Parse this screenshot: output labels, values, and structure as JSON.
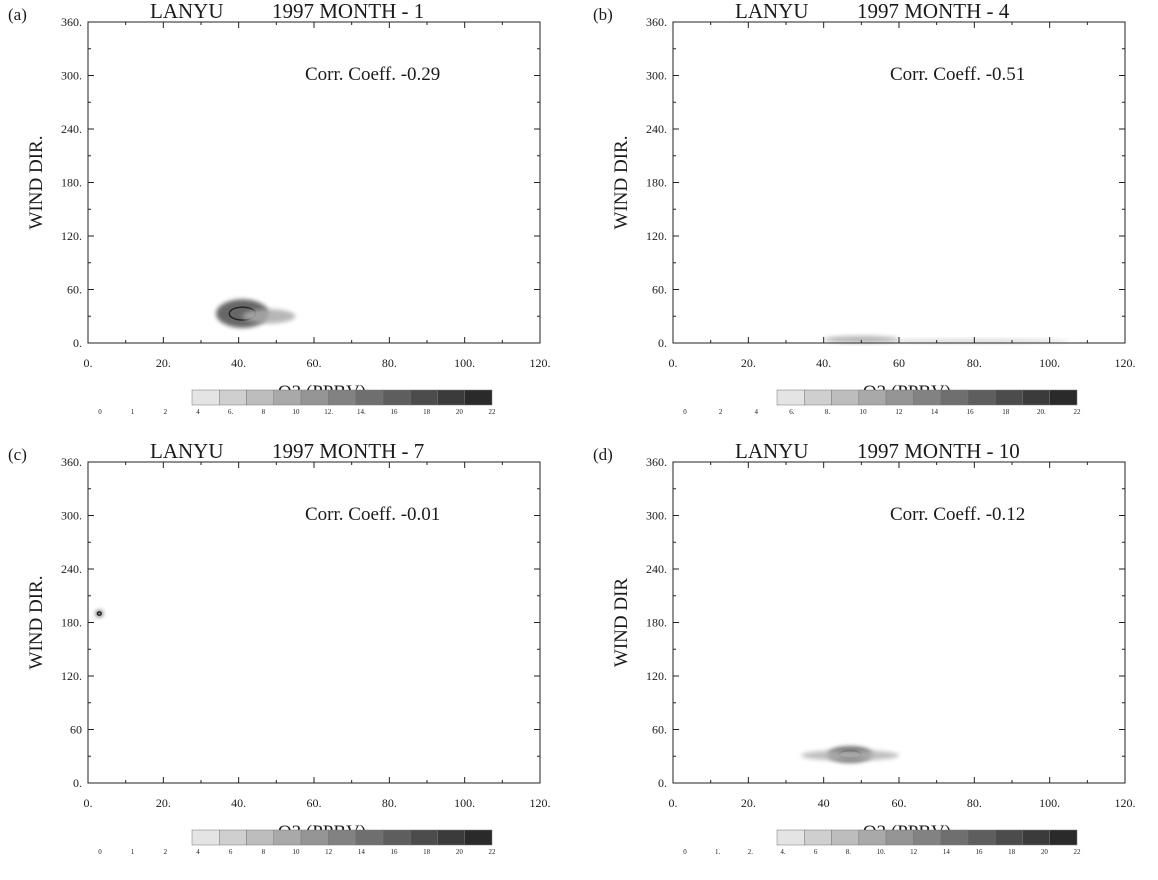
{
  "chart_data": [
    {
      "type": "heatmap",
      "panel_label": "(a)",
      "title": [
        "LANYU",
        "1997 MONTH  -  1"
      ],
      "xlabel": "O3 (PPBV)",
      "ylabel": "WIND DIR.",
      "xlim": [
        0,
        120
      ],
      "ylim": [
        0,
        360
      ],
      "xticks": [
        "0.",
        "20.",
        "40.",
        "60.",
        "80.",
        "100.",
        "120."
      ],
      "yticks": [
        "0.",
        "60.",
        "120.",
        "180.",
        "240.",
        "300.",
        "360."
      ],
      "annotation": "Corr. Coeff. -0.29",
      "colorbar": {
        "ticks": [
          "0",
          "1",
          "2",
          "4",
          "6.",
          "8",
          "10",
          "12.",
          "14.",
          "16",
          "18",
          "20",
          "22"
        ]
      },
      "density_blobs": [
        {
          "x": 41,
          "y": 33,
          "rx": 7,
          "ry": 16,
          "level": 0.85
        },
        {
          "x": 48,
          "y": 30,
          "rx": 7,
          "ry": 8,
          "level": 0.35
        }
      ]
    },
    {
      "type": "heatmap",
      "panel_label": "(b)",
      "title": [
        "LANYU",
        "1997 MONTH  -  4"
      ],
      "xlabel": "O3 (PPBV)",
      "ylabel": "WIND DIR.",
      "xlim": [
        0,
        120
      ],
      "ylim": [
        0,
        360
      ],
      "xticks": [
        "0.",
        "20.",
        "40.",
        "60",
        "80.",
        "100.",
        "120."
      ],
      "yticks": [
        "0.",
        "60.",
        "120.",
        "180.",
        "240.",
        "300.",
        "360."
      ],
      "annotation": "Corr. Coeff. -0.51",
      "colorbar": {
        "ticks": [
          "0",
          "2",
          "4",
          "6.",
          "8.",
          "10",
          "12",
          "14",
          "16",
          "18",
          "20.",
          "22"
        ]
      },
      "density_blobs": [
        {
          "x": 50,
          "y": 4,
          "rx": 10,
          "ry": 4,
          "level": 0.35
        },
        {
          "x": 80,
          "y": 2,
          "rx": 25,
          "ry": 2,
          "level": 0.15
        }
      ]
    },
    {
      "type": "heatmap",
      "panel_label": "(c)",
      "title": [
        "LANYU",
        "1997 MONTH  -  7"
      ],
      "xlabel": "O3 (PPBV)",
      "ylabel": "WIND DIR.",
      "xlim": [
        0,
        120
      ],
      "ylim": [
        0,
        360
      ],
      "xticks": [
        "0.",
        "20.",
        "40.",
        "60.",
        "80.",
        "100.",
        "120."
      ],
      "yticks": [
        "0.",
        "60",
        "120.",
        "180.",
        "240.",
        "300.",
        "360."
      ],
      "annotation": "Corr. Coeff. -0.01",
      "colorbar": {
        "ticks": [
          "0",
          "1",
          "2",
          "4",
          "6",
          "8",
          "10",
          "12",
          "14",
          "16",
          "18",
          "20",
          "22"
        ]
      },
      "density_blobs": [
        {
          "x": 3,
          "y": 190,
          "rx": 1,
          "ry": 4,
          "level": 0.8
        }
      ]
    },
    {
      "type": "heatmap",
      "panel_label": "(d)",
      "title": [
        "LANYU",
        "1997 MONTH  - 10"
      ],
      "xlabel": "O3 (PPBV)",
      "ylabel": "WIND DIR",
      "xlim": [
        0,
        120
      ],
      "ylim": [
        0,
        360
      ],
      "xticks": [
        "0.",
        "20.",
        "40",
        "60.",
        "80.",
        "100.",
        "120."
      ],
      "yticks": [
        "0.",
        "60.",
        "120.",
        "180.",
        "240.",
        "300.",
        "360."
      ],
      "annotation": "Corr. Coeff. -0.12",
      "colorbar": {
        "ticks": [
          "0",
          "1.",
          "2.",
          "4.",
          "6",
          "8.",
          "10.",
          "12",
          "14",
          "16",
          "18",
          "20",
          "22"
        ]
      },
      "density_blobs": [
        {
          "x": 47,
          "y": 32,
          "rx": 6,
          "ry": 9,
          "level": 0.9
        },
        {
          "x": 47,
          "y": 31,
          "rx": 13,
          "ry": 6,
          "level": 0.3
        }
      ]
    }
  ]
}
